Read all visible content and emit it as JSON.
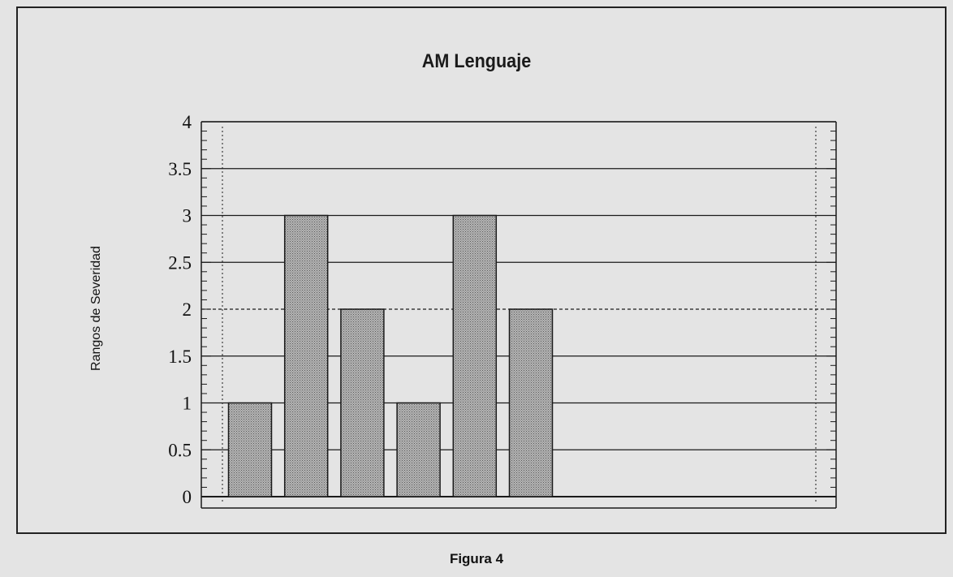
{
  "caption": "Figura 4",
  "colors": {
    "background": "#e4e4e4",
    "bar_fill": "#a6a6a6",
    "line": "#1a1a1a"
  },
  "chart_data": {
    "type": "bar",
    "title": "AM Lenguaje",
    "xlabel": "",
    "ylabel": "Rangos de Severidad",
    "ylim": [
      0,
      4
    ],
    "y_ticks": [
      "0",
      "0.5",
      "1",
      "1.5",
      "2",
      "2.5",
      "3",
      "3.5",
      "4"
    ],
    "values": [
      1,
      3,
      2,
      1,
      3,
      2
    ],
    "reference_line": 2,
    "grid": true,
    "legend": "none"
  }
}
